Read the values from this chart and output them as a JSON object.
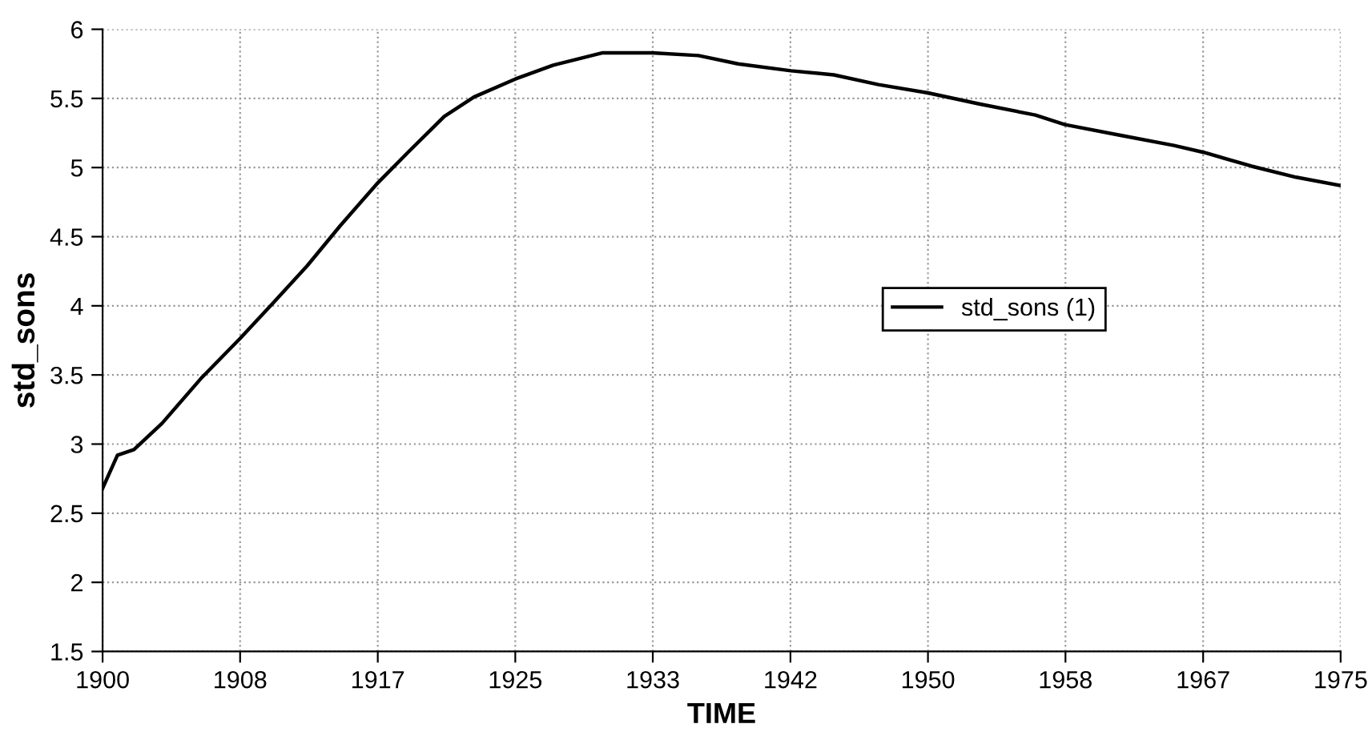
{
  "chart_data": {
    "type": "line",
    "xlabel": "TIME",
    "ylabel": "std_sons",
    "x": [
      1900,
      1900.9,
      1901.9,
      1903.6,
      1906,
      1908.3,
      1910.4,
      1912.4,
      1914.4,
      1916.6,
      1918.5,
      1920.7,
      1922.5,
      1925,
      1927.3,
      1930.3,
      1933.3,
      1936.1,
      1938.5,
      1941.7,
      1944.3,
      1947,
      1950,
      1953.1,
      1956.5,
      1958.3,
      1961.8,
      1964.9,
      1966.7,
      1969.6,
      1972.3,
      1975
    ],
    "series": [
      {
        "name": "std_sons (1)",
        "color": "#000000",
        "values": [
          2.68,
          2.92,
          2.96,
          3.15,
          3.48,
          3.76,
          4.03,
          4.29,
          4.58,
          4.88,
          5.11,
          5.37,
          5.51,
          5.64,
          5.74,
          5.83,
          5.83,
          5.81,
          5.75,
          5.7,
          5.67,
          5.6,
          5.54,
          5.46,
          5.38,
          5.31,
          5.23,
          5.16,
          5.11,
          5.01,
          4.93,
          4.87
        ]
      }
    ],
    "xlim": [
      1900,
      1975
    ],
    "xticks": [
      1900,
      {
        "value": 1908.33,
        "label": "1908"
      },
      {
        "value": 1916.67,
        "label": "1917"
      },
      1925,
      {
        "value": 1933.33,
        "label": "1933"
      },
      {
        "value": 1941.67,
        "label": "1942"
      },
      1950,
      {
        "value": 1958.33,
        "label": "1958"
      },
      {
        "value": 1966.67,
        "label": "1967"
      },
      1975
    ],
    "ylim": [
      1.5,
      6
    ],
    "yticks": [
      1.5,
      2,
      2.5,
      3,
      3.5,
      4,
      4.5,
      5,
      5.5,
      6
    ],
    "grid": true,
    "legend": "right",
    "marker": "none",
    "line_style": "solid"
  }
}
